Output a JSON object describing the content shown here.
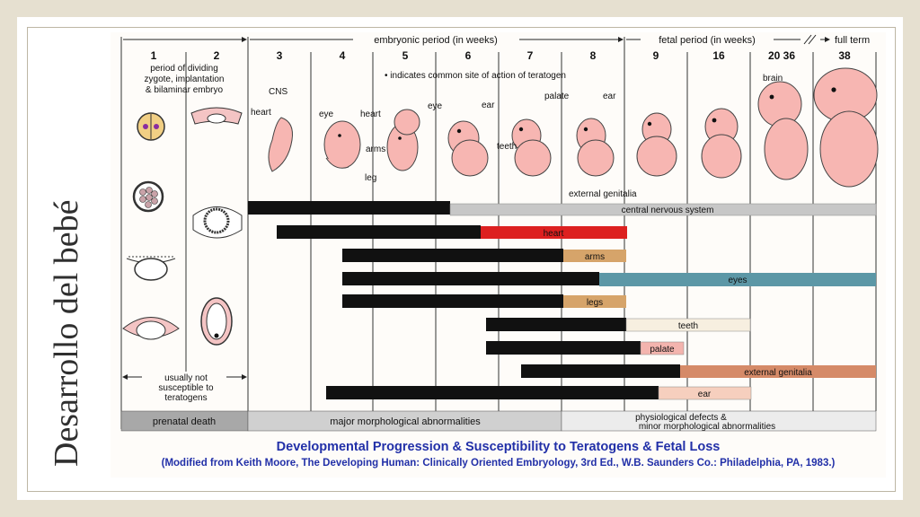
{
  "slide_title": "Desarrollo del bebé",
  "header": {
    "embryonic_period": "embryonic period (in weeks)",
    "fetal_period": "fetal period (in weeks)",
    "full_term": "full term"
  },
  "weeks": [
    "1",
    "2",
    "3",
    "4",
    "5",
    "6",
    "7",
    "8",
    "9",
    "16",
    "20 36",
    "38"
  ],
  "notes": {
    "period_dividing": [
      "period of dividing",
      "zygote, implantation",
      "& bilaminar embryo"
    ],
    "teratogen_note": "• indicates common site of action of teratogen",
    "usually_not": [
      "usually not",
      "susceptible to",
      "teratogens"
    ]
  },
  "embryo_labels": {
    "cns": "CNS",
    "heart_w3": "heart",
    "eye_w4": "eye",
    "heart_w4": "heart",
    "arms": "arms",
    "leg": "leg",
    "eye_w5": "eye",
    "ear_w6": "ear",
    "teeth": "teeth",
    "palate": "palate",
    "ear_w8": "ear",
    "external_genitalia": "external genitalia",
    "brain": "brain"
  },
  "bars": [
    {
      "label": "central nervous system",
      "color": "#c7c7c7"
    },
    {
      "label": "heart",
      "color": "#dd2020"
    },
    {
      "label": "arms",
      "color": "#d6a46a"
    },
    {
      "label": "eyes",
      "color": "#5c97a6"
    },
    {
      "label": "legs",
      "color": "#d6a46a"
    },
    {
      "label": "teeth",
      "color": "#f7efe0"
    },
    {
      "label": "palate",
      "color": "#f3b4ae"
    },
    {
      "label": "external genitalia",
      "color": "#d58a68"
    },
    {
      "label": "ear",
      "color": "#f6cfbe"
    }
  ],
  "footer": {
    "prenatal_death": "prenatal death",
    "major_abnormalities": "major morphological abnormalities",
    "physiological": [
      "physiological defects &",
      "minor morphological abnormalities"
    ]
  },
  "caption": {
    "line1": "Developmental Progression & Susceptibility to Teratogens & Fetal Loss",
    "line2": "(Modified from Keith Moore, The Developing Human: Clinically Oriented Embryology, 3rd Ed., W.B. Saunders Co.: Philadelphia, PA, 1983.)"
  },
  "colors": {
    "embryo": "#f7b6b2",
    "embryo_outline": "#444444",
    "bar_black": "#111111",
    "slide_bg": "#e6e0d0"
  }
}
